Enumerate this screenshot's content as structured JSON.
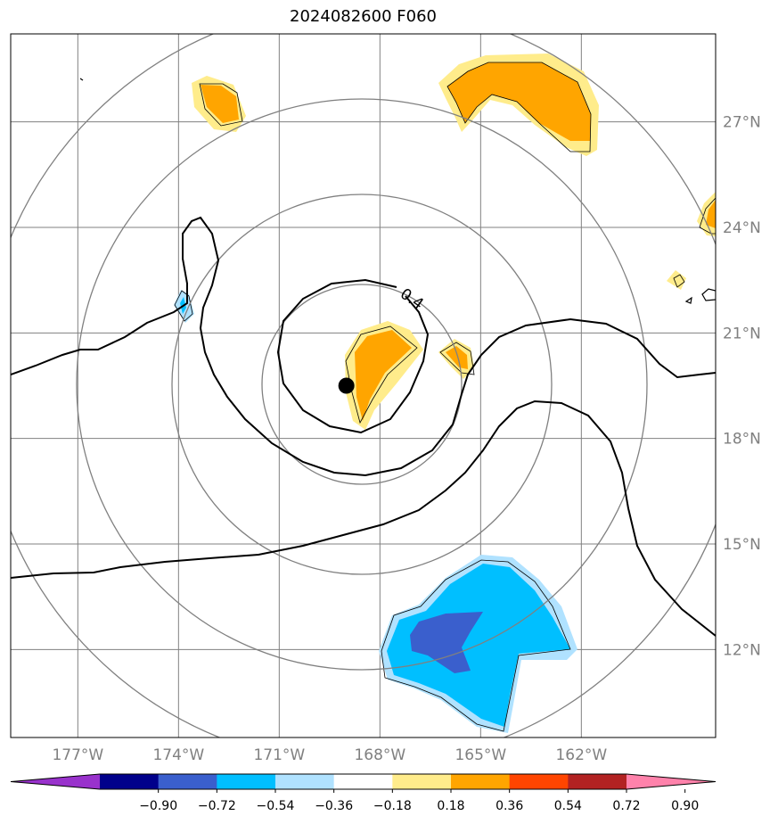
{
  "title": "2024082600 F060",
  "map": {
    "lon_range": [
      -179,
      -158
    ],
    "lat_range": [
      9.5,
      29.5
    ],
    "lon_ticks": [
      {
        "value": -177,
        "label": "177°W"
      },
      {
        "value": -174,
        "label": "174°W"
      },
      {
        "value": -171,
        "label": "171°W"
      },
      {
        "value": -168,
        "label": "168°W"
      },
      {
        "value": -165,
        "label": "165°W"
      },
      {
        "value": -162,
        "label": "162°W"
      }
    ],
    "lat_ticks": [
      {
        "value": 27,
        "label": "27°N"
      },
      {
        "value": 24,
        "label": "24°N"
      },
      {
        "value": 21,
        "label": "21°N"
      },
      {
        "value": 18,
        "label": "18°N"
      },
      {
        "value": 15,
        "label": "15°N"
      },
      {
        "value": 12,
        "label": "12°N"
      }
    ],
    "storm_center": {
      "lon": -169,
      "lat": 19.5
    },
    "contour_label": "0.4",
    "gridline_color": "#808080",
    "range_ring_color": "#808080",
    "contour_color": "#000000"
  },
  "colorbar": {
    "colors": [
      "#9932cc",
      "#00008b",
      "#3a5fcd",
      "#00bfff",
      "#b0e2ff",
      "#ffffff",
      "#ffec8b",
      "#ffa500",
      "#ff4500",
      "#b22222",
      "#ff82ab"
    ],
    "tick_labels": [
      "−0.90",
      "−0.72",
      "−0.54",
      "−0.36",
      "−0.18",
      "0.18",
      "0.36",
      "0.54",
      "0.72",
      "0.90"
    ]
  }
}
